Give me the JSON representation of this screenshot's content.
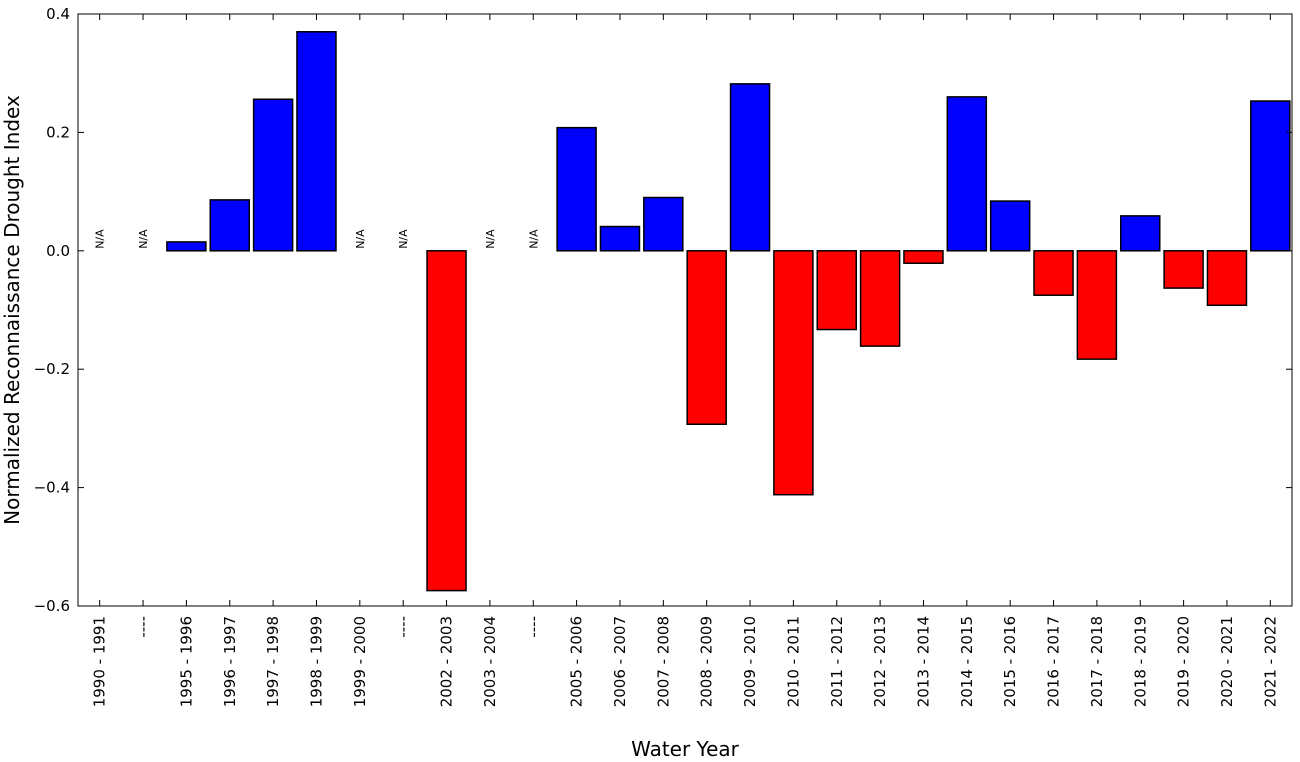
{
  "chart_data": {
    "type": "bar",
    "xlabel": "Water Year",
    "ylabel": "Normalized Reconnaissance Drought Index",
    "ylim": [
      -0.6,
      0.4
    ],
    "yticks": [
      0.4,
      0.2,
      0.0,
      -0.2,
      -0.4,
      -0.6
    ],
    "ytick_labels": [
      "0.4",
      "0.2",
      "0.0",
      "−0.2",
      "−0.4",
      "−0.6"
    ],
    "grid": false,
    "positive_color": "#0000ff",
    "negative_color": "#ff0000",
    "na_text": "N/A",
    "categories": [
      "1990 - 1991",
      "----",
      "1995 - 1996",
      "1996 - 1997",
      "1997 - 1998",
      "1998 - 1999",
      "1999 - 2000",
      "----",
      "2002 - 2003",
      "2003 - 2004",
      "----",
      "2005 - 2006",
      "2006 - 2007",
      "2007 - 2008",
      "2008 - 2009",
      "2009 - 2010",
      "2010 - 2011",
      "2011 - 2012",
      "2012 - 2013",
      "2013 - 2014",
      "2014 - 2015",
      "2015 - 2016",
      "2016 - 2017",
      "2017 - 2018",
      "2018 - 2019",
      "2019 - 2020",
      "2020 - 2021",
      "2021 - 2022"
    ],
    "values": [
      null,
      null,
      0.015,
      0.086,
      0.256,
      0.37,
      null,
      null,
      -0.574,
      null,
      null,
      0.208,
      0.041,
      0.09,
      -0.293,
      0.282,
      -0.412,
      -0.133,
      -0.161,
      -0.021,
      0.26,
      0.084,
      -0.075,
      -0.183,
      0.059,
      -0.063,
      -0.092,
      0.253
    ]
  }
}
